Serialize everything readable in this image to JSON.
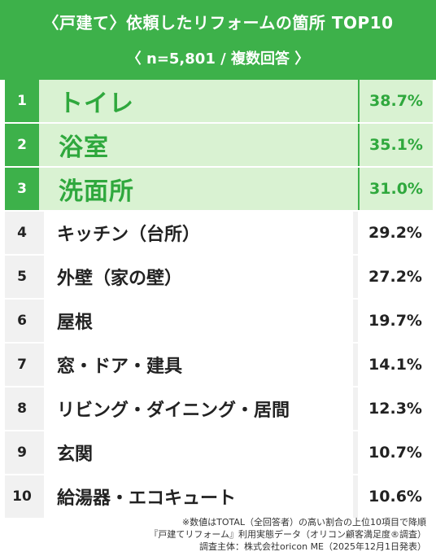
{
  "header": {
    "title": "〈戸建て〉依頼したリフォームの箇所 TOP10",
    "subtitle": "〈 n=5,801 / 複数回答 〉"
  },
  "chart_data": {
    "type": "table",
    "title": "〈戸建て〉依頼したリフォームの箇所 TOP10",
    "subtitle": "〈 n=5,801 / 複数回答 〉",
    "columns": [
      "rank",
      "item",
      "percent"
    ],
    "rows": [
      {
        "rank": "1",
        "item": "トイレ",
        "value": 38.7,
        "label": "38.7%"
      },
      {
        "rank": "2",
        "item": "浴室",
        "value": 35.1,
        "label": "35.1%"
      },
      {
        "rank": "3",
        "item": "洗面所",
        "value": 31.0,
        "label": "31.0%"
      },
      {
        "rank": "4",
        "item": "キッチン（台所）",
        "value": 29.2,
        "label": "29.2%"
      },
      {
        "rank": "5",
        "item": "外壁（家の壁）",
        "value": 27.2,
        "label": "27.2%"
      },
      {
        "rank": "6",
        "item": "屋根",
        "value": 19.7,
        "label": "19.7%"
      },
      {
        "rank": "7",
        "item": "窓・ドア・建具",
        "value": 14.1,
        "label": "14.1%"
      },
      {
        "rank": "8",
        "item": "リビング・ダイニング・居間",
        "value": 12.3,
        "label": "12.3%"
      },
      {
        "rank": "9",
        "item": "玄関",
        "value": 10.7,
        "label": "10.7%"
      },
      {
        "rank": "10",
        "item": "給湯器・エコキュート",
        "value": 10.6,
        "label": "10.6%"
      }
    ],
    "highlight_top": 3
  },
  "colors": {
    "brand_green": "#3db14a",
    "highlight_bg": "#d9f2d2",
    "highlight_text": "#2fa83d"
  },
  "footnotes": [
    "※数値はTOTAL（全回答者）の高い割合の上位10項目で降順",
    "『戸建てリフォーム』利用実態データ（オリコン顧客満足度®調査）",
    "調査主体：株式会社oricon ME（2025年12月1日発表）"
  ]
}
